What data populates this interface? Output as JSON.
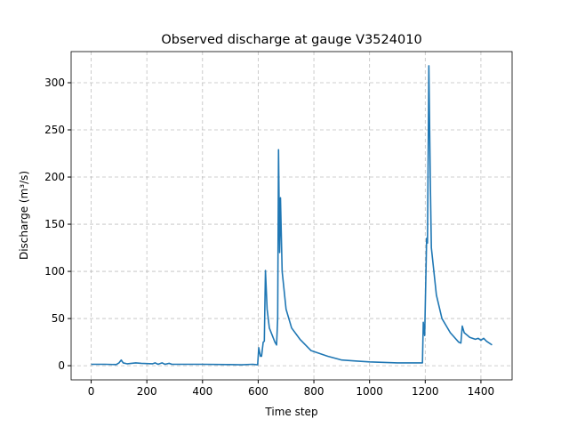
{
  "chart_data": {
    "type": "line",
    "title": "Observed discharge at gauge V3524010",
    "x_label": "Time step",
    "y_label": "Discharge (m³/s)",
    "x": [
      0,
      50,
      90,
      100,
      108,
      115,
      130,
      160,
      180,
      220,
      230,
      240,
      255,
      265,
      280,
      290,
      400,
      500,
      540,
      580,
      598,
      602,
      608,
      612,
      618,
      622,
      626,
      632,
      640,
      660,
      666,
      670,
      673,
      677,
      680,
      686,
      700,
      720,
      750,
      790,
      850,
      900,
      950,
      1000,
      1100,
      1185,
      1190,
      1193,
      1198,
      1205,
      1208,
      1213,
      1218,
      1222,
      1240,
      1260,
      1290,
      1320,
      1328,
      1333,
      1340,
      1360,
      1380,
      1390,
      1400,
      1410,
      1420,
      1440
    ],
    "series": [
      {
        "name": "Discharge",
        "color": "#1f77b4",
        "values": [
          1.5,
          1.5,
          1.2,
          3,
          6,
          3,
          2,
          3,
          2.5,
          2,
          3,
          1.5,
          3,
          1.5,
          2.5,
          1.5,
          1.5,
          1.2,
          1,
          1.5,
          1,
          19,
          10,
          10,
          25,
          26,
          101,
          60,
          40,
          25,
          22,
          50,
          229,
          120,
          178,
          100,
          60,
          40,
          28,
          16,
          10,
          6,
          5,
          4,
          3,
          3,
          3,
          46,
          32,
          135,
          130,
          318,
          200,
          125,
          75,
          50,
          35,
          25,
          24,
          42,
          35,
          30,
          28,
          29,
          27,
          29,
          26,
          22
        ]
      }
    ],
    "xlim": [
      -72,
      1512
    ],
    "ylim": [
      -15,
      333
    ],
    "xticks": [
      0,
      200,
      400,
      600,
      800,
      1000,
      1200,
      1400
    ],
    "yticks": [
      0,
      50,
      100,
      150,
      200,
      250,
      300
    ],
    "grid": true
  }
}
